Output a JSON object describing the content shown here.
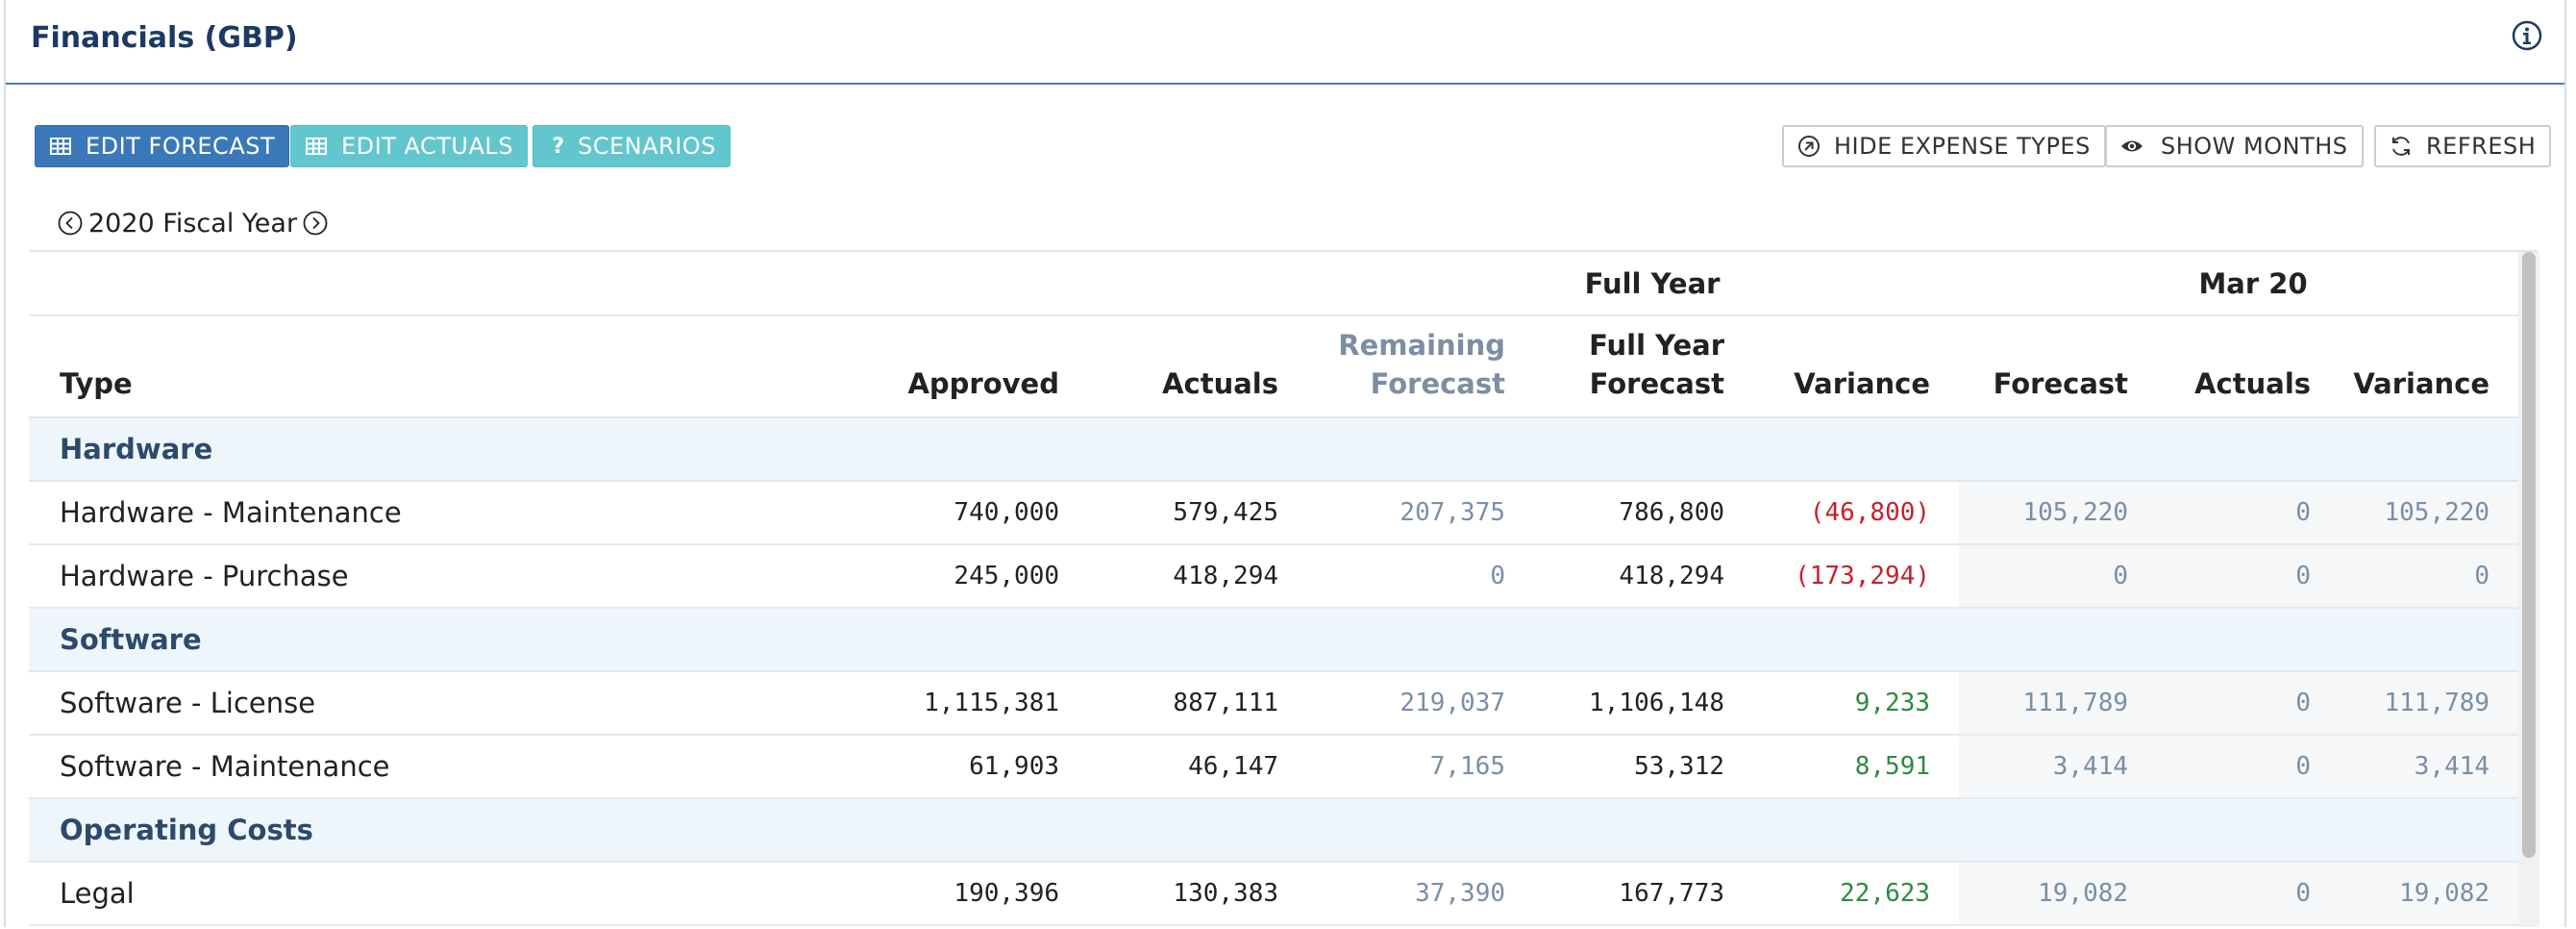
{
  "header": {
    "title": "Financials (GBP)",
    "info_icon": "info-circle-icon"
  },
  "toolbar": {
    "edit_forecast": "EDIT FORECAST",
    "edit_actuals": "EDIT ACTUALS",
    "scenarios": "SCENARIOS",
    "hide_expense_types": "HIDE EXPENSE TYPES",
    "show_months": "SHOW MONTHS",
    "refresh": "REFRESH"
  },
  "fiscal_year": {
    "label": "2020 Fiscal Year"
  },
  "table": {
    "groups": {
      "full_year": "Full Year",
      "month": "Mar 20"
    },
    "columns": {
      "type": "Type",
      "approved": "Approved",
      "actuals": "Actuals",
      "remaining_forecast_1": "Remaining",
      "remaining_forecast_2": "Forecast",
      "full_year_forecast_1": "Full Year",
      "full_year_forecast_2": "Forecast",
      "variance": "Variance",
      "month_forecast": "Forecast",
      "month_actuals": "Actuals",
      "month_variance": "Variance"
    },
    "categories": [
      "Hardware",
      "Software",
      "Operating Costs"
    ],
    "rows": [
      {
        "name": "Hardware - Maintenance",
        "approved": "740,000",
        "actuals": "579,425",
        "remaining": "207,375",
        "fy_forecast": "786,800",
        "variance": "(46,800)",
        "m_forecast": "105,220",
        "m_actuals": "0",
        "m_variance": "105,220"
      },
      {
        "name": "Hardware - Purchase",
        "approved": "245,000",
        "actuals": "418,294",
        "remaining": "0",
        "fy_forecast": "418,294",
        "variance": "(173,294)",
        "m_forecast": "0",
        "m_actuals": "0",
        "m_variance": "0"
      },
      {
        "name": "Software - License",
        "approved": "1,115,381",
        "actuals": "887,111",
        "remaining": "219,037",
        "fy_forecast": "1,106,148",
        "variance": "9,233",
        "m_forecast": "111,789",
        "m_actuals": "0",
        "m_variance": "111,789"
      },
      {
        "name": "Software - Maintenance",
        "approved": "61,903",
        "actuals": "46,147",
        "remaining": "7,165",
        "fy_forecast": "53,312",
        "variance": "8,591",
        "m_forecast": "3,414",
        "m_actuals": "0",
        "m_variance": "3,414"
      },
      {
        "name": "Legal",
        "approved": "190,396",
        "actuals": "130,383",
        "remaining": "37,390",
        "fy_forecast": "167,773",
        "variance": "22,623",
        "m_forecast": "19,082",
        "m_actuals": "0",
        "m_variance": "19,082"
      }
    ]
  },
  "colors": {
    "primary": "#3a78b9",
    "teal": "#62c6cf",
    "negative": "#c8202c",
    "positive": "#2e8b3e",
    "category_bg": "#eef6fc",
    "title": "#1b3a63"
  }
}
